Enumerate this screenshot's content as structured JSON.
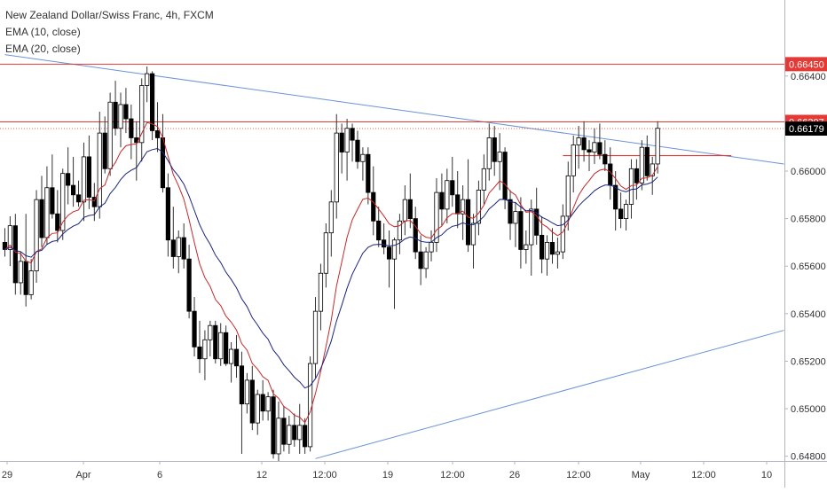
{
  "legend": {
    "symbol": "New Zealand Dollar/Swiss Franc, 4h, FXCM",
    "ema1": "EMA (10, close)",
    "ema2": "EMA (20, close)"
  },
  "colors": {
    "bull_body": "#ffffff",
    "bear_body": "#000000",
    "wick": "#333333",
    "ema10": "#c62828",
    "ema20": "#1a237e",
    "trendline": "#6b93d6",
    "hline": "#e53935",
    "price_badge_red": "#e53935",
    "price_badge_black": "#000000",
    "grid_text": "#333333"
  },
  "chart_data": {
    "type": "candlestick",
    "title": "New Zealand Dollar/Swiss Franc, 4h, FXCM",
    "ylim": [
      0.6478,
      0.6672
    ],
    "y_ticks": [
      "0.66400",
      "0.66000",
      "0.65800",
      "0.65600",
      "0.65400",
      "0.65200",
      "0.65000",
      "0.64800"
    ],
    "x_ticks": [
      "29",
      "Apr",
      "6",
      "12",
      "12:00",
      "19",
      "12:00",
      "26",
      "12:00",
      "May",
      "12:00",
      "10"
    ],
    "horizontal_levels": [
      {
        "value": 0.6645,
        "label": "0.66450"
      },
      {
        "value": 0.66207,
        "label": "0.66207"
      }
    ],
    "current_price": {
      "value": 0.66179,
      "label": "0.66179"
    },
    "short_level": {
      "value": 0.66065,
      "from_bar": 106,
      "to_bar": 138
    },
    "trendlines": [
      {
        "from_bar": 0,
        "from_value": 0.6649,
        "to_bar": 148,
        "to_value": 0.6603
      },
      {
        "from_bar": 59,
        "from_value": 0.6479,
        "to_bar": 148,
        "to_value": 0.6533
      }
    ],
    "ohlc": [
      [
        0.657,
        0.6576,
        0.6564,
        0.6567
      ],
      [
        0.6567,
        0.6581,
        0.656,
        0.6577
      ],
      [
        0.6577,
        0.6582,
        0.6548,
        0.6553
      ],
      [
        0.6553,
        0.6566,
        0.6548,
        0.6562
      ],
      [
        0.6562,
        0.6582,
        0.6543,
        0.6548
      ],
      [
        0.6548,
        0.6563,
        0.6546,
        0.6558
      ],
      [
        0.6558,
        0.6592,
        0.6553,
        0.6588
      ],
      [
        0.6588,
        0.6598,
        0.6568,
        0.6572
      ],
      [
        0.6572,
        0.6602,
        0.6569,
        0.6593
      ],
      [
        0.6593,
        0.6607,
        0.658,
        0.6582
      ],
      [
        0.6582,
        0.6592,
        0.657,
        0.6575
      ],
      [
        0.6575,
        0.6601,
        0.6571,
        0.6599
      ],
      [
        0.6599,
        0.661,
        0.6586,
        0.6594
      ],
      [
        0.6594,
        0.6606,
        0.6585,
        0.659
      ],
      [
        0.659,
        0.6596,
        0.6585,
        0.6587
      ],
      [
        0.6587,
        0.6612,
        0.6579,
        0.6606
      ],
      [
        0.6606,
        0.6615,
        0.6584,
        0.6589
      ],
      [
        0.6589,
        0.6595,
        0.6579,
        0.6585
      ],
      [
        0.6585,
        0.6625,
        0.658,
        0.6616
      ],
      [
        0.6616,
        0.6623,
        0.6599,
        0.6601
      ],
      [
        0.6601,
        0.6633,
        0.6598,
        0.6629
      ],
      [
        0.6629,
        0.6638,
        0.6615,
        0.6618
      ],
      [
        0.6618,
        0.6633,
        0.661,
        0.6628
      ],
      [
        0.6628,
        0.6635,
        0.6616,
        0.6622
      ],
      [
        0.6622,
        0.6628,
        0.6605,
        0.6614
      ],
      [
        0.6614,
        0.6621,
        0.6596,
        0.6612
      ],
      [
        0.6612,
        0.6639,
        0.6604,
        0.6636
      ],
      [
        0.6636,
        0.6644,
        0.6629,
        0.6641
      ],
      [
        0.6641,
        0.6642,
        0.6613,
        0.6617
      ],
      [
        0.6617,
        0.6629,
        0.6608,
        0.6614
      ],
      [
        0.6614,
        0.6624,
        0.6591,
        0.6593
      ],
      [
        0.6593,
        0.6599,
        0.6564,
        0.6571
      ],
      [
        0.6571,
        0.6585,
        0.6559,
        0.6564
      ],
      [
        0.6564,
        0.6575,
        0.6557,
        0.6572
      ],
      [
        0.6572,
        0.6578,
        0.6559,
        0.6563
      ],
      [
        0.6563,
        0.6569,
        0.6538,
        0.6541
      ],
      [
        0.6541,
        0.6547,
        0.6522,
        0.6526
      ],
      [
        0.6526,
        0.6537,
        0.6515,
        0.6521
      ],
      [
        0.6521,
        0.6533,
        0.6512,
        0.6529
      ],
      [
        0.6529,
        0.6537,
        0.6522,
        0.6535
      ],
      [
        0.6535,
        0.6537,
        0.6519,
        0.6521
      ],
      [
        0.6521,
        0.6536,
        0.6518,
        0.6532
      ],
      [
        0.6532,
        0.6535,
        0.6518,
        0.6519
      ],
      [
        0.6519,
        0.6528,
        0.6511,
        0.6525
      ],
      [
        0.6525,
        0.6531,
        0.6513,
        0.6518
      ],
      [
        0.6518,
        0.6524,
        0.6481,
        0.6502
      ],
      [
        0.6502,
        0.6515,
        0.6498,
        0.6512
      ],
      [
        0.6512,
        0.6518,
        0.6491,
        0.6494
      ],
      [
        0.6494,
        0.6508,
        0.6489,
        0.6506
      ],
      [
        0.6506,
        0.6512,
        0.6495,
        0.6499
      ],
      [
        0.6499,
        0.6507,
        0.6495,
        0.6505
      ],
      [
        0.6505,
        0.6508,
        0.6479,
        0.6481
      ],
      [
        0.6481,
        0.6503,
        0.6476,
        0.6496
      ],
      [
        0.6496,
        0.6501,
        0.6482,
        0.6485
      ],
      [
        0.6485,
        0.6497,
        0.6481,
        0.6493
      ],
      [
        0.6493,
        0.6498,
        0.6484,
        0.6487
      ],
      [
        0.6487,
        0.6502,
        0.6481,
        0.6493
      ],
      [
        0.6493,
        0.6496,
        0.6481,
        0.6484
      ],
      [
        0.6484,
        0.6522,
        0.6482,
        0.6519
      ],
      [
        0.6519,
        0.6547,
        0.6513,
        0.6541
      ],
      [
        0.6541,
        0.6561,
        0.6533,
        0.6557
      ],
      [
        0.6557,
        0.6578,
        0.6551,
        0.6574
      ],
      [
        0.6574,
        0.6592,
        0.6564,
        0.6587
      ],
      [
        0.6587,
        0.6624,
        0.658,
        0.6616
      ],
      [
        0.6616,
        0.662,
        0.6599,
        0.6608
      ],
      [
        0.6608,
        0.6622,
        0.6596,
        0.6618
      ],
      [
        0.6618,
        0.662,
        0.6604,
        0.6613
      ],
      [
        0.6613,
        0.6617,
        0.6601,
        0.6604
      ],
      [
        0.6604,
        0.661,
        0.6596,
        0.6607
      ],
      [
        0.6607,
        0.661,
        0.6586,
        0.6591
      ],
      [
        0.6591,
        0.6602,
        0.6573,
        0.6579
      ],
      [
        0.6579,
        0.6585,
        0.6568,
        0.6571
      ],
      [
        0.6571,
        0.6578,
        0.6565,
        0.6568
      ],
      [
        0.6568,
        0.6575,
        0.6551,
        0.6563
      ],
      [
        0.6563,
        0.6572,
        0.6542,
        0.6571
      ],
      [
        0.6571,
        0.6582,
        0.6565,
        0.6579
      ],
      [
        0.6579,
        0.6594,
        0.6573,
        0.6588
      ],
      [
        0.6588,
        0.6599,
        0.6576,
        0.658
      ],
      [
        0.658,
        0.6585,
        0.6563,
        0.6566
      ],
      [
        0.6566,
        0.6573,
        0.6552,
        0.6559
      ],
      [
        0.6559,
        0.6568,
        0.6555,
        0.6566
      ],
      [
        0.6566,
        0.6575,
        0.6562,
        0.657
      ],
      [
        0.657,
        0.6597,
        0.6566,
        0.6591
      ],
      [
        0.6591,
        0.6599,
        0.6577,
        0.6584
      ],
      [
        0.6584,
        0.6601,
        0.6578,
        0.6596
      ],
      [
        0.6596,
        0.6606,
        0.6585,
        0.659
      ],
      [
        0.659,
        0.66,
        0.6576,
        0.6582
      ],
      [
        0.6582,
        0.6594,
        0.6571,
        0.6588
      ],
      [
        0.6588,
        0.6605,
        0.6566,
        0.6569
      ],
      [
        0.6569,
        0.6582,
        0.6559,
        0.6578
      ],
      [
        0.6578,
        0.6596,
        0.6573,
        0.6592
      ],
      [
        0.6592,
        0.6607,
        0.6586,
        0.6601
      ],
      [
        0.6601,
        0.662,
        0.6596,
        0.6614
      ],
      [
        0.6614,
        0.6619,
        0.6598,
        0.6604
      ],
      [
        0.6604,
        0.6616,
        0.6592,
        0.6608
      ],
      [
        0.6608,
        0.661,
        0.6584,
        0.6588
      ],
      [
        0.6588,
        0.6592,
        0.6571,
        0.6578
      ],
      [
        0.6578,
        0.6587,
        0.6568,
        0.6583
      ],
      [
        0.6583,
        0.6589,
        0.6559,
        0.6567
      ],
      [
        0.6567,
        0.6575,
        0.6561,
        0.6569
      ],
      [
        0.6569,
        0.6588,
        0.6556,
        0.6584
      ],
      [
        0.6584,
        0.6593,
        0.6569,
        0.6573
      ],
      [
        0.6573,
        0.6581,
        0.6557,
        0.6563
      ],
      [
        0.6563,
        0.6573,
        0.6556,
        0.657
      ],
      [
        0.657,
        0.6576,
        0.6561,
        0.6565
      ],
      [
        0.6565,
        0.6572,
        0.6559,
        0.6566
      ],
      [
        0.6566,
        0.6586,
        0.6563,
        0.6581
      ],
      [
        0.6581,
        0.6604,
        0.6575,
        0.6598
      ],
      [
        0.6598,
        0.6615,
        0.6591,
        0.6611
      ],
      [
        0.6611,
        0.6619,
        0.6601,
        0.6614
      ],
      [
        0.6614,
        0.6621,
        0.6604,
        0.6609
      ],
      [
        0.6609,
        0.6613,
        0.66,
        0.6608
      ],
      [
        0.6608,
        0.6618,
        0.6603,
        0.6612
      ],
      [
        0.6612,
        0.662,
        0.6605,
        0.6607
      ],
      [
        0.6607,
        0.6613,
        0.66,
        0.6603
      ],
      [
        0.6603,
        0.661,
        0.6588,
        0.6594
      ],
      [
        0.6594,
        0.66,
        0.6575,
        0.6584
      ],
      [
        0.6584,
        0.6591,
        0.6576,
        0.658
      ],
      [
        0.658,
        0.6588,
        0.6575,
        0.6586
      ],
      [
        0.6586,
        0.6605,
        0.658,
        0.6601
      ],
      [
        0.6601,
        0.6605,
        0.6588,
        0.6595
      ],
      [
        0.6595,
        0.6613,
        0.6592,
        0.661
      ],
      [
        0.661,
        0.6615,
        0.6596,
        0.6598
      ],
      [
        0.6598,
        0.6606,
        0.659,
        0.6603
      ],
      [
        0.6603,
        0.6621,
        0.6599,
        0.6618
      ]
    ]
  }
}
